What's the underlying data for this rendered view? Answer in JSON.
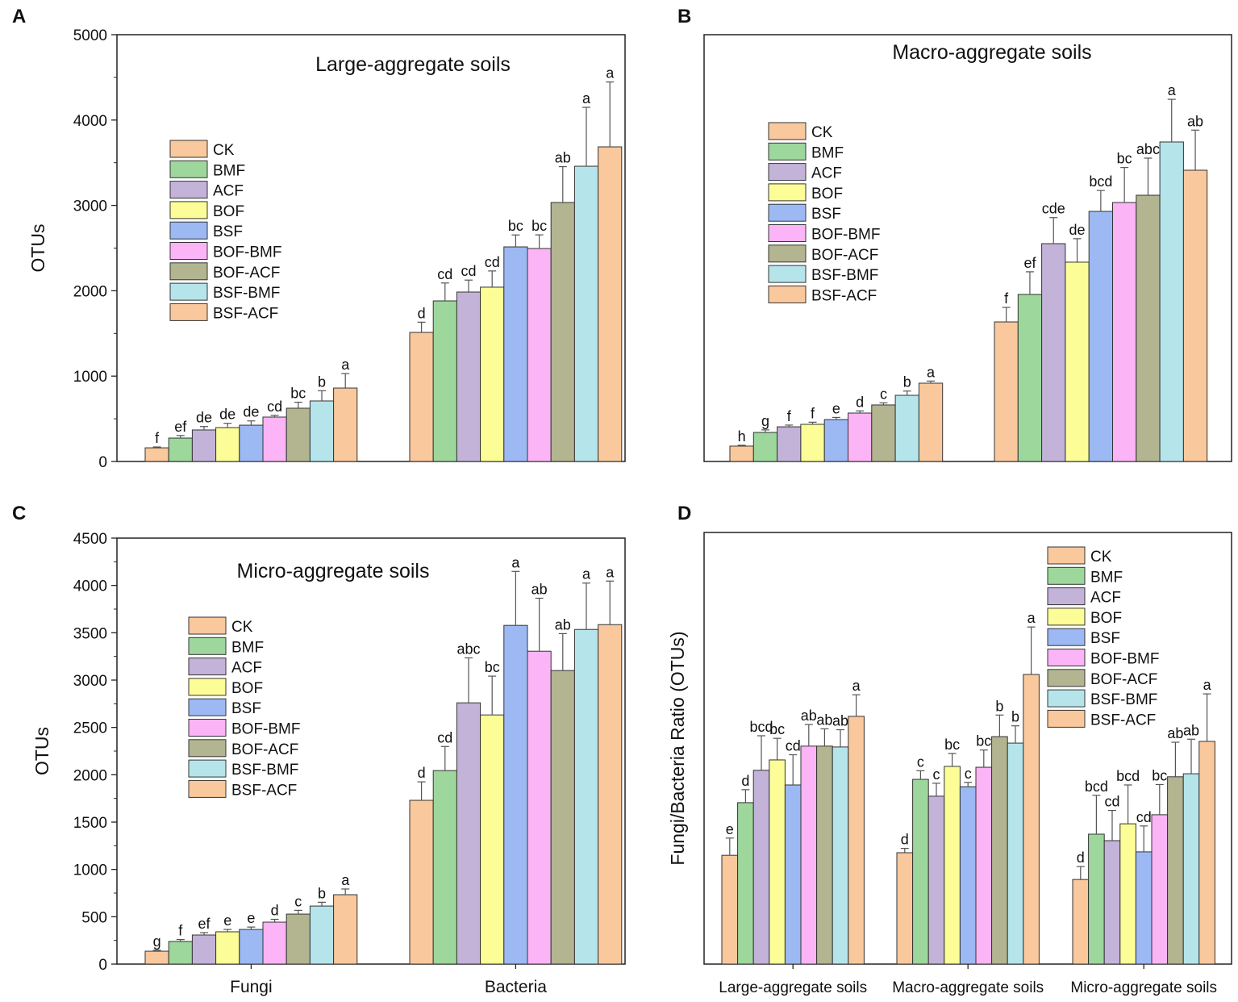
{
  "treatments": [
    "CK",
    "BMF",
    "ACF",
    "BOF",
    "BSF",
    "BOF-BMF",
    "BOF-ACF",
    "BSF-BMF",
    "BSF-ACF"
  ],
  "colors": [
    "#f9c89c",
    "#9dd79c",
    "#c3b3d9",
    "#fdfd98",
    "#9cb9f3",
    "#fbb4f5",
    "#b3b591",
    "#b5e5ea",
    "#f9c89c"
  ],
  "chart_data": [
    {
      "panel": "A",
      "type": "bar",
      "title": "Large-aggregate soils",
      "ylabel": "OTUs",
      "xlabel": "",
      "ylim": [
        0,
        5000
      ],
      "yticks": [
        0,
        1000,
        2000,
        3000,
        4000,
        5000
      ],
      "show_yticks": true,
      "categories": [
        "Fungi",
        "Bacteria"
      ],
      "show_categories": false,
      "legend": "upper-left",
      "groups": [
        {
          "values": [
            160,
            274,
            369,
            397,
            425,
            520,
            624,
            709,
            860
          ],
          "errors": [
            10,
            30,
            40,
            50,
            50,
            20,
            70,
            120,
            170
          ],
          "letters": [
            "f",
            "ef",
            "de",
            "de",
            "de",
            "cd",
            "bc",
            "b",
            "a"
          ]
        },
        {
          "values": [
            1512,
            1881,
            1985,
            2042,
            2514,
            2495,
            3034,
            3459,
            3686
          ],
          "errors": [
            120,
            210,
            140,
            190,
            140,
            160,
            420,
            690,
            760
          ],
          "letters": [
            "d",
            "cd",
            "cd",
            "cd",
            "bc",
            "bc",
            "ab",
            "a",
            "a"
          ]
        }
      ]
    },
    {
      "panel": "B",
      "type": "bar",
      "title": "Macro-aggregate soils",
      "ylabel": "",
      "xlabel": "",
      "ylim": [
        0,
        5000
      ],
      "show_yticks": false,
      "categories": [
        "Fungi",
        "Bacteria"
      ],
      "show_categories": false,
      "legend": "upper-left",
      "groups": [
        {
          "values": [
            180,
            340,
            406,
            435,
            491,
            567,
            662,
            775,
            917
          ],
          "errors": [
            10,
            30,
            20,
            25,
            25,
            25,
            25,
            50,
            25
          ],
          "letters": [
            "h",
            "g",
            "f",
            "f",
            "e",
            "d",
            "c",
            "b",
            "a"
          ]
        },
        {
          "values": [
            1635,
            1957,
            2552,
            2335,
            2930,
            3034,
            3119,
            3743,
            3412
          ],
          "errors": [
            170,
            265,
            305,
            275,
            245,
            410,
            435,
            500,
            470
          ],
          "letters": [
            "f",
            "ef",
            "cde",
            "de",
            "bcd",
            "bc",
            "abc",
            "a",
            "ab"
          ]
        }
      ]
    },
    {
      "panel": "C",
      "type": "bar",
      "title": "Micro-aggregate soils",
      "ylabel": "OTUs",
      "xlabel": "",
      "ylim": [
        0,
        4500
      ],
      "yticks": [
        0,
        500,
        1000,
        1500,
        2000,
        2500,
        3000,
        3500,
        4000,
        4500
      ],
      "show_yticks": true,
      "categories": [
        "Fungi",
        "Bacteria"
      ],
      "show_categories": true,
      "legend": "upper-left",
      "groups": [
        {
          "values": [
            136,
            239,
            307,
            341,
            366,
            443,
            528,
            613,
            733
          ],
          "errors": [
            10,
            20,
            25,
            25,
            25,
            30,
            40,
            40,
            60
          ],
          "letters": [
            "g",
            "f",
            "ef",
            "e",
            "e",
            "d",
            "c",
            "b",
            "a"
          ]
        },
        {
          "values": [
            1730,
            2044,
            2760,
            2632,
            3578,
            3305,
            3101,
            3535,
            3586
          ],
          "errors": [
            195,
            255,
            475,
            410,
            570,
            560,
            390,
            490,
            460
          ],
          "letters": [
            "d",
            "cd",
            "abc",
            "bc",
            "a",
            "ab",
            "ab",
            "a",
            "a"
          ]
        }
      ]
    },
    {
      "panel": "D",
      "type": "bar",
      "title": "",
      "ylabel": "Fungi/Bacteria Ratio (OTUs)",
      "xlabel": "",
      "ylim": [
        0,
        1
      ],
      "show_yticks": false,
      "categories": [
        "Large-aggregate soils",
        "Macro-aggregate soils",
        "Micro-aggregate soils"
      ],
      "show_categories": true,
      "legend": "upper-right",
      "groups": [
        {
          "values": [
            0.252,
            0.374,
            0.449,
            0.473,
            0.415,
            0.505,
            0.505,
            0.503,
            0.574
          ],
          "errors": [
            0.04,
            0.03,
            0.08,
            0.05,
            0.07,
            0.05,
            0.04,
            0.04,
            0.05
          ],
          "letters": [
            "e",
            "d",
            "bcd",
            "bc",
            "cd",
            "ab",
            "ab",
            "ab",
            "a"
          ]
        },
        {
          "values": [
            0.258,
            0.428,
            0.389,
            0.458,
            0.411,
            0.456,
            0.527,
            0.512,
            0.671
          ],
          "errors": [
            0.01,
            0.02,
            0.03,
            0.03,
            0.01,
            0.04,
            0.05,
            0.04,
            0.11
          ],
          "letters": [
            "d",
            "c",
            "c",
            "bc",
            "c",
            "bc",
            "b",
            "b",
            "a"
          ]
        },
        {
          "values": [
            0.196,
            0.301,
            0.286,
            0.325,
            0.26,
            0.346,
            0.434,
            0.441,
            0.516
          ],
          "errors": [
            0.03,
            0.09,
            0.07,
            0.09,
            0.06,
            0.07,
            0.08,
            0.08,
            0.11
          ],
          "letters": [
            "d",
            "bcd",
            "cd",
            "bcd",
            "cd",
            "bc",
            "ab",
            "ab",
            "a"
          ]
        }
      ]
    }
  ]
}
